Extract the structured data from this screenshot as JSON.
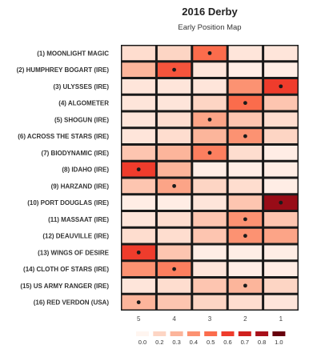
{
  "chart_data": {
    "type": "heatmap",
    "title": "2016 Derby",
    "subtitle": "Early Position Map",
    "columns": [
      "5",
      "4",
      "3",
      "2",
      "1"
    ],
    "rows": [
      "(1) MOONLIGHT MAGIC",
      "(2) HUMPHREY BOGART (IRE)",
      "(3) ULYSSES (IRE)",
      "(4) ALGOMETER",
      "(5) SHOGUN (IRE)",
      "(6) ACROSS THE STARS (IRE)",
      "(7) BIODYNAMIC (IRE)",
      "(8) IDAHO (IRE)",
      "(9) HARZAND (IRE)",
      "(10) PORT DOUGLAS (IRE)",
      "(11) MASSAAT (IRE)",
      "(12) DEAUVILLE (IRE)",
      "(13) WINGS OF DESIRE",
      "(14) CLOTH OF STARS (IRE)",
      "(15) US ARMY RANGER (IRE)",
      "(16) RED VERDON (USA)"
    ],
    "values": [
      [
        0.15,
        0.2,
        0.5,
        0.1,
        0.1
      ],
      [
        0.3,
        0.55,
        0.1,
        0.05,
        0.05
      ],
      [
        0.1,
        0.1,
        0.1,
        0.4,
        0.6
      ],
      [
        0.1,
        0.1,
        0.2,
        0.5,
        0.25
      ],
      [
        0.1,
        0.15,
        0.35,
        0.25,
        0.15
      ],
      [
        0.1,
        0.15,
        0.3,
        0.4,
        0.2
      ],
      [
        0.25,
        0.3,
        0.45,
        0.15,
        0.05
      ],
      [
        0.6,
        0.3,
        0.05,
        0.05,
        0.05
      ],
      [
        0.25,
        0.35,
        0.2,
        0.15,
        0.05
      ],
      [
        0.05,
        0.05,
        0.1,
        0.25,
        0.85
      ],
      [
        0.1,
        0.15,
        0.25,
        0.4,
        0.25
      ],
      [
        0.15,
        0.15,
        0.25,
        0.4,
        0.35
      ],
      [
        0.6,
        0.25,
        0.05,
        0.05,
        0.05
      ],
      [
        0.4,
        0.45,
        0.1,
        0.05,
        0.05
      ],
      [
        0.1,
        0.15,
        0.25,
        0.3,
        0.2
      ],
      [
        0.3,
        0.25,
        0.2,
        0.15,
        0.1
      ]
    ],
    "markers": [
      {
        "row": 0,
        "col": 2
      },
      {
        "row": 1,
        "col": 1
      },
      {
        "row": 2,
        "col": 4
      },
      {
        "row": 3,
        "col": 3
      },
      {
        "row": 4,
        "col": 2
      },
      {
        "row": 5,
        "col": 3
      },
      {
        "row": 6,
        "col": 2
      },
      {
        "row": 7,
        "col": 0
      },
      {
        "row": 8,
        "col": 1
      },
      {
        "row": 9,
        "col": 4
      },
      {
        "row": 10,
        "col": 3
      },
      {
        "row": 11,
        "col": 3
      },
      {
        "row": 12,
        "col": 0
      },
      {
        "row": 13,
        "col": 1
      },
      {
        "row": 14,
        "col": 3
      },
      {
        "row": 15,
        "col": 0
      }
    ],
    "legend": {
      "values": [
        0.0,
        0.2,
        0.3,
        0.4,
        0.5,
        0.6,
        0.7,
        0.8,
        1.0
      ],
      "labels": [
        "0.0",
        "0.2",
        "0.3",
        "0.4",
        "0.5",
        "0.6",
        "0.7",
        "0.8",
        "1.0"
      ],
      "colors": [
        "#fff5f0",
        "#fdd5c4",
        "#fcb59b",
        "#fc9272",
        "#fb6c4c",
        "#ef3c2c",
        "#d0211e",
        "#a8101a",
        "#67000d"
      ],
      "placement": "bottom"
    },
    "colorscale": "Reds",
    "grid": false
  }
}
